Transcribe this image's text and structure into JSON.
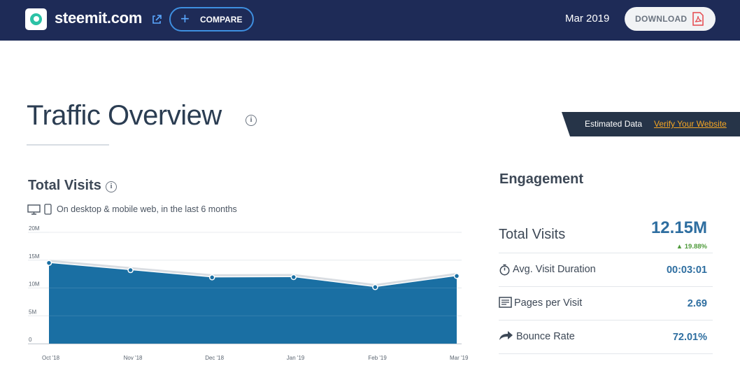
{
  "header": {
    "site": "steemit.com",
    "compare_label": "COMPARE",
    "date": "Mar 2019",
    "download_label": "DOWNLOAD",
    "icons": [
      "steemit-logo-icon",
      "external-link-icon",
      "plus-icon",
      "pdf-icon"
    ]
  },
  "main": {
    "title": "Traffic Overview",
    "estimated_label": "Estimated Data",
    "verify_link": "Verify Your Website"
  },
  "visits": {
    "title": "Total Visits",
    "device_note": "On desktop & mobile web, in the last 6 months"
  },
  "chart_data": {
    "type": "area",
    "title": "",
    "x": [
      "Oct '18",
      "Nov '18",
      "Dec '18",
      "Jan '19",
      "Feb '19",
      "Mar '19"
    ],
    "y_ticks": [
      "0",
      "5M",
      "10M",
      "15M",
      "20M"
    ],
    "ylim": [
      0,
      20000000
    ],
    "series": [
      {
        "values": [
          14500000,
          13200000,
          11900000,
          11950000,
          10150000,
          12150000
        ],
        "color": "#1a6fa3"
      }
    ],
    "grid": true,
    "legend": "none"
  },
  "engagement": {
    "title": "Engagement",
    "total_visits_label": "Total Visits",
    "total_visits_value": "12.15M",
    "total_visits_change": "19.88%",
    "avg_duration_label": "Avg. Visit Duration",
    "avg_duration_value": "00:03:01",
    "pages_label": "Pages per Visit",
    "pages_value": "2.69",
    "bounce_label": "Bounce Rate",
    "bounce_value": "72.01%"
  },
  "colors": {
    "header_bg": "#1e2b57",
    "accent_blue": "#2e6ea0",
    "area_fill": "#1a6fa3",
    "positive": "#4e9a3a",
    "link_orange": "#f5a623"
  }
}
